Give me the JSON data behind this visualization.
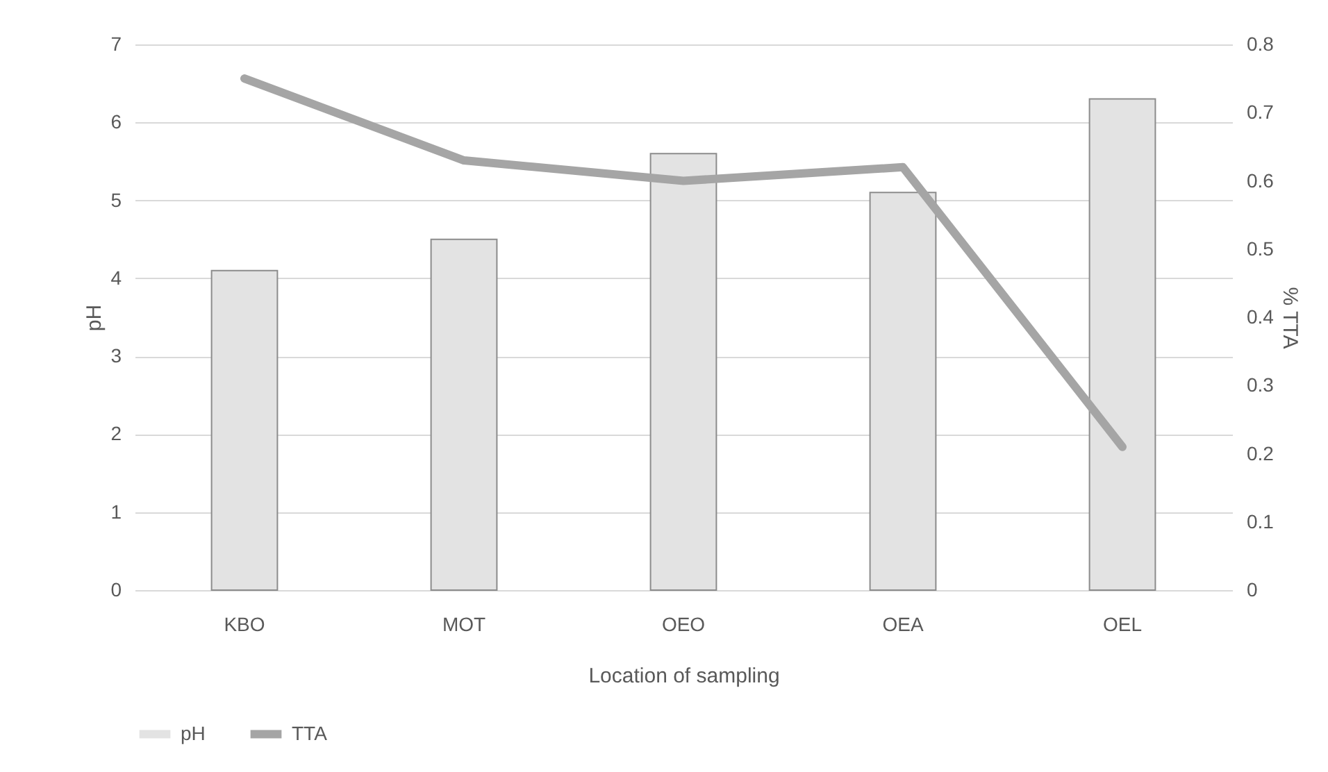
{
  "chart_data": {
    "type": "bar",
    "xlabel": "Location of sampling",
    "ylabel": "pH",
    "y2label": "% TTA",
    "categories": [
      "KBO",
      "MOT",
      "OEO",
      "OEA",
      "OEL"
    ],
    "series": [
      {
        "name": "pH",
        "color": "#e3e3e3",
        "values": [
          4.1,
          4.5,
          5.6,
          5.1,
          6.3
        ]
      },
      {
        "name": "TTA",
        "type": "line",
        "axis": "y2",
        "color": "#a5a5a5",
        "values": [
          0.75,
          0.63,
          0.6,
          0.62,
          0.21
        ]
      }
    ],
    "ylim": [
      0,
      7
    ],
    "yticks": [
      0,
      1,
      2,
      3,
      4,
      5,
      6,
      7
    ],
    "y2lim": [
      0,
      0.8
    ],
    "y2ticks": [
      0,
      0.1,
      0.2,
      0.3,
      0.4,
      0.5,
      0.6,
      0.7,
      0.8
    ],
    "grid": "y",
    "legend": "bottom",
    "line_style": "solid"
  }
}
